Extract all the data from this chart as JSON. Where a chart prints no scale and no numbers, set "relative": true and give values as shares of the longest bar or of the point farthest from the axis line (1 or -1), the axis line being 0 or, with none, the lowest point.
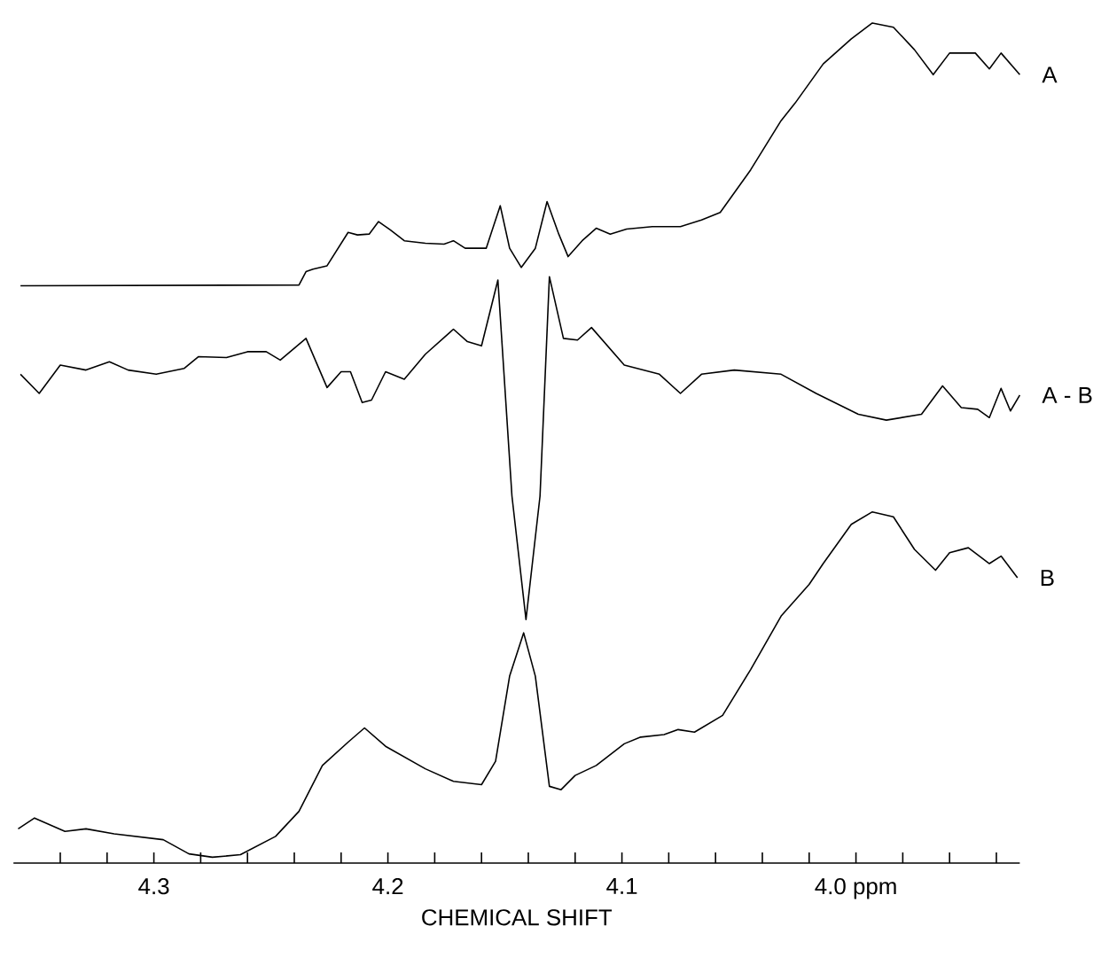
{
  "chart_data": {
    "type": "line",
    "relative": true,
    "xlabel": "CHEMICAL SHIFT",
    "xlim": [
      4.36,
      3.93
    ],
    "xticks": [
      {
        "value": 4.34,
        "label": null
      },
      {
        "value": 4.32,
        "label": null
      },
      4.3,
      {
        "value": 4.28,
        "label": null
      },
      {
        "value": 4.26,
        "label": null
      },
      {
        "value": 4.24,
        "label": null
      },
      {
        "value": 4.22,
        "label": null
      },
      4.2,
      {
        "value": 4.18,
        "label": null
      },
      {
        "value": 4.16,
        "label": null
      },
      {
        "value": 4.14,
        "label": null
      },
      {
        "value": 4.12,
        "label": null
      },
      4.1,
      {
        "value": 4.08,
        "label": null
      },
      {
        "value": 4.06,
        "label": null
      },
      {
        "value": 4.04,
        "label": null
      },
      {
        "value": 4.02,
        "label": null
      },
      {
        "value": 4.0,
        "label": "4.0 ppm"
      },
      {
        "value": 3.98,
        "label": null
      },
      {
        "value": 3.96,
        "label": null
      },
      {
        "value": 3.94,
        "label": null
      }
    ],
    "series": [
      {
        "name": "A",
        "color": "#000000",
        "x": [
          4.357,
          4.238,
          4.235,
          4.232,
          4.226,
          4.217,
          4.213,
          4.208,
          4.204,
          4.199,
          4.193,
          4.184,
          4.176,
          4.172,
          4.167,
          4.158,
          4.152,
          4.148,
          4.143,
          4.137,
          4.132,
          4.127,
          4.123,
          4.117,
          4.111,
          4.105,
          4.098,
          4.087,
          4.075,
          4.066,
          4.058,
          4.045,
          4.032,
          4.026,
          4.014,
          4.002,
          3.993,
          3.984,
          3.975,
          3.967,
          3.96,
          3.949,
          3.943,
          3.938,
          3.93
        ],
        "values": [
          0.685,
          0.686,
          0.702,
          0.705,
          0.709,
          0.749,
          0.746,
          0.747,
          0.762,
          0.752,
          0.739,
          0.736,
          0.735,
          0.739,
          0.73,
          0.73,
          0.781,
          0.73,
          0.707,
          0.73,
          0.786,
          0.747,
          0.72,
          0.739,
          0.754,
          0.747,
          0.753,
          0.756,
          0.756,
          0.764,
          0.773,
          0.824,
          0.883,
          0.904,
          0.951,
          0.981,
          1.0,
          0.995,
          0.968,
          0.938,
          0.964,
          0.964,
          0.945,
          0.964,
          0.938
        ]
      },
      {
        "name": "A - B",
        "color": "#000000",
        "x": [
          4.357,
          4.349,
          4.34,
          4.329,
          4.319,
          4.311,
          4.299,
          4.287,
          4.281,
          4.269,
          4.26,
          4.252,
          4.246,
          4.235,
          4.226,
          4.22,
          4.216,
          4.211,
          4.207,
          4.201,
          4.193,
          4.184,
          4.172,
          4.166,
          4.16,
          4.153,
          4.147,
          4.141,
          4.135,
          4.131,
          4.125,
          4.119,
          4.113,
          4.099,
          4.084,
          4.075,
          4.066,
          4.052,
          4.032,
          4.017,
          3.999,
          3.987,
          3.972,
          3.963,
          3.955,
          3.948,
          3.943,
          3.938,
          3.934,
          3.93
        ],
        "values": [
          0.579,
          0.556,
          0.59,
          0.584,
          0.594,
          0.584,
          0.579,
          0.586,
          0.6,
          0.599,
          0.606,
          0.606,
          0.596,
          0.622,
          0.563,
          0.582,
          0.582,
          0.545,
          0.548,
          0.582,
          0.573,
          0.603,
          0.633,
          0.618,
          0.613,
          0.692,
          0.433,
          0.285,
          0.433,
          0.696,
          0.622,
          0.62,
          0.635,
          0.59,
          0.579,
          0.556,
          0.579,
          0.584,
          0.579,
          0.556,
          0.531,
          0.524,
          0.531,
          0.565,
          0.539,
          0.537,
          0.527,
          0.562,
          0.535,
          0.554
        ]
      },
      {
        "name": "B",
        "color": "#000000",
        "x": [
          4.358,
          4.351,
          4.338,
          4.329,
          4.317,
          4.296,
          4.285,
          4.275,
          4.263,
          4.248,
          4.238,
          4.228,
          4.217,
          4.21,
          4.201,
          4.184,
          4.172,
          4.16,
          4.154,
          4.148,
          4.142,
          4.137,
          4.131,
          4.126,
          4.12,
          4.111,
          4.099,
          4.092,
          4.082,
          4.076,
          4.069,
          4.057,
          4.045,
          4.032,
          4.02,
          4.014,
          4.002,
          3.993,
          3.984,
          3.975,
          3.966,
          3.96,
          3.952,
          3.943,
          3.938,
          3.931
        ],
        "values": [
          0.034,
          0.047,
          0.031,
          0.034,
          0.028,
          0.021,
          0.004,
          0.0,
          0.003,
          0.025,
          0.055,
          0.11,
          0.138,
          0.155,
          0.133,
          0.106,
          0.091,
          0.087,
          0.115,
          0.217,
          0.269,
          0.217,
          0.085,
          0.081,
          0.098,
          0.11,
          0.136,
          0.144,
          0.147,
          0.153,
          0.15,
          0.17,
          0.225,
          0.289,
          0.327,
          0.352,
          0.399,
          0.414,
          0.408,
          0.369,
          0.344,
          0.365,
          0.371,
          0.352,
          0.361,
          0.335
        ]
      }
    ]
  }
}
